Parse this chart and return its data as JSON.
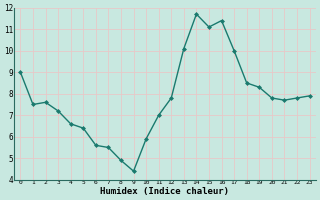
{
  "x": [
    0,
    1,
    2,
    3,
    4,
    5,
    6,
    7,
    8,
    9,
    10,
    11,
    12,
    13,
    14,
    15,
    16,
    17,
    18,
    19,
    20,
    21,
    22,
    23
  ],
  "y": [
    9.0,
    7.5,
    7.6,
    7.2,
    6.6,
    6.4,
    5.6,
    5.5,
    4.9,
    4.4,
    5.9,
    7.0,
    7.8,
    10.1,
    11.7,
    11.1,
    11.4,
    10.0,
    8.5,
    8.3,
    7.8,
    7.7,
    7.8,
    7.9
  ],
  "xlabel": "Humidex (Indice chaleur)",
  "ylim": [
    4,
    12
  ],
  "xlim": [
    -0.5,
    23.5
  ],
  "yticks": [
    4,
    5,
    6,
    7,
    8,
    9,
    10,
    11,
    12
  ],
  "xticks": [
    0,
    1,
    2,
    3,
    4,
    5,
    6,
    7,
    8,
    9,
    10,
    11,
    12,
    13,
    14,
    15,
    16,
    17,
    18,
    19,
    20,
    21,
    22,
    23
  ],
  "line_color": "#1a7a6e",
  "marker_color": "#1a7a6e",
  "bg_color": "#c8e8e0",
  "grid_color": "#e8c8c8",
  "title": ""
}
